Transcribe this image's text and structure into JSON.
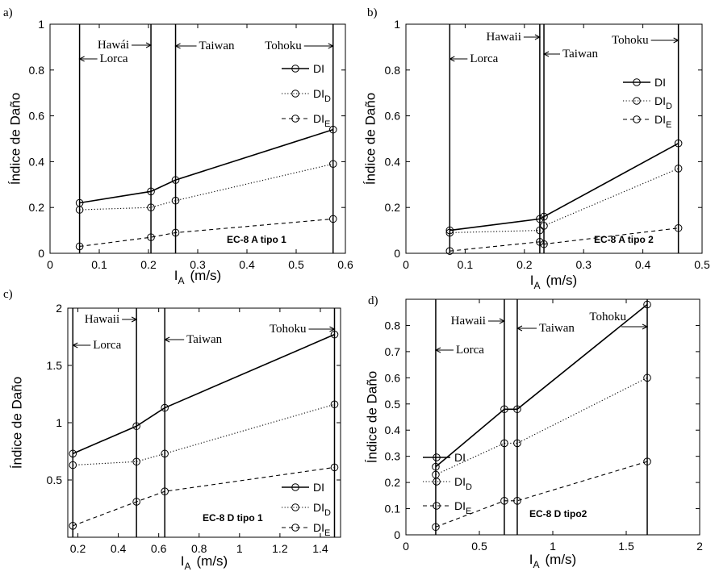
{
  "figure": {
    "background": "#ffffff",
    "ink": "#000000"
  },
  "chart_data": [
    {
      "panel": "a)",
      "type": "line",
      "xlabel": {
        "text": "I",
        "sub": "A",
        "unit": "(m/s)"
      },
      "ylabel": "Índice de Daño",
      "xlim": [
        0,
        0.6
      ],
      "ylim": [
        0,
        1
      ],
      "xticks": [
        "0",
        "0.1",
        "0.2",
        "0.3",
        "0.4",
        "0.5",
        "0.6"
      ],
      "yticks": [
        "0",
        "0.2",
        "0.4",
        "0.6",
        "0.8",
        "1"
      ],
      "grid": false,
      "legend_position": "upper right",
      "x": [
        0.06,
        0.205,
        0.255,
        0.575
      ],
      "events": [
        "Lorca",
        "Hawái",
        "Taiwan",
        "Tohoku"
      ],
      "series": [
        {
          "name": "DI",
          "values": [
            0.22,
            0.27,
            0.32,
            0.54
          ]
        },
        {
          "name": "DI",
          "sub": "D",
          "values": [
            0.19,
            0.2,
            0.23,
            0.39
          ]
        },
        {
          "name": "DI",
          "sub": "E",
          "values": [
            0.03,
            0.07,
            0.09,
            0.15
          ]
        }
      ],
      "annotation": "EC-8 A tipo 1"
    },
    {
      "panel": "b)",
      "type": "line",
      "xlabel": {
        "text": "I",
        "sub": "A",
        "unit": "(m/s)"
      },
      "ylabel": "Índice de Daño",
      "xlim": [
        0,
        0.5
      ],
      "ylim": [
        0,
        1
      ],
      "xticks": [
        "0",
        "0.1",
        "0.2",
        "0.3",
        "0.4",
        "0.5"
      ],
      "yticks": [
        "0",
        "0.2",
        "0.4",
        "0.6",
        "0.8",
        "1"
      ],
      "grid": false,
      "legend_position": "upper right",
      "x": [
        0.074,
        0.226,
        0.233,
        0.46
      ],
      "events": [
        "Lorca",
        "Hawaii",
        "Taiwan",
        "Tohoku"
      ],
      "series": [
        {
          "name": "DI",
          "values": [
            0.1,
            0.15,
            0.16,
            0.48
          ]
        },
        {
          "name": "DI",
          "sub": "D",
          "values": [
            0.09,
            0.1,
            0.12,
            0.37
          ]
        },
        {
          "name": "DI",
          "sub": "E",
          "values": [
            0.01,
            0.05,
            0.04,
            0.11
          ]
        }
      ],
      "annotation": "EC-8 A tipo 2"
    },
    {
      "panel": "c)",
      "type": "line",
      "xlabel": {
        "text": "I",
        "sub": "A",
        "unit": "(m/s)"
      },
      "ylabel": "Índice de Daño",
      "xlim": [
        0.15,
        1.5
      ],
      "ylim": [
        0,
        2
      ],
      "xticks": [
        "0.2",
        "0.4",
        "0.6",
        "0.8",
        "1",
        "1.2",
        "1.4"
      ],
      "yticks": [
        "0.5",
        "1",
        "1.5",
        "2"
      ],
      "grid": false,
      "legend_position": "lower right",
      "x": [
        0.175,
        0.49,
        0.63,
        1.47
      ],
      "events": [
        "Lorca",
        "Hawaii",
        "Taiwan",
        "Tohoku"
      ],
      "series": [
        {
          "name": "DI",
          "values": [
            0.73,
            0.97,
            1.13,
            1.77
          ]
        },
        {
          "name": "DI",
          "sub": "D",
          "values": [
            0.63,
            0.66,
            0.73,
            1.16
          ]
        },
        {
          "name": "DI",
          "sub": "E",
          "values": [
            0.1,
            0.31,
            0.4,
            0.61
          ]
        }
      ],
      "annotation": "EC-8 D tipo 1"
    },
    {
      "panel": "d)",
      "type": "line",
      "xlabel": {
        "text": "I",
        "sub": "A",
        "unit": "(m/s)"
      },
      "ylabel": "Índice de Daño",
      "xlim": [
        0,
        2
      ],
      "ylim": [
        0,
        0.9
      ],
      "xticks": [
        "0",
        "0.5",
        "1",
        "1.5",
        "2"
      ],
      "yticks": [
        "0",
        "0.1",
        "0.2",
        "0.3",
        "0.4",
        "0.5",
        "0.6",
        "0.7",
        "0.8"
      ],
      "grid": false,
      "legend_position": "center left",
      "x": [
        0.203,
        0.67,
        0.758,
        1.643
      ],
      "events": [
        "Lorca",
        "Hawaii",
        "Taiwan",
        "Tohoku"
      ],
      "series": [
        {
          "name": "DI",
          "values": [
            0.26,
            0.48,
            0.48,
            0.88
          ]
        },
        {
          "name": "DI",
          "sub": "D",
          "values": [
            0.23,
            0.35,
            0.35,
            0.6
          ]
        },
        {
          "name": "DI",
          "sub": "E",
          "values": [
            0.03,
            0.13,
            0.13,
            0.28
          ]
        }
      ],
      "annotation": "EC-8 D tipo2"
    }
  ]
}
